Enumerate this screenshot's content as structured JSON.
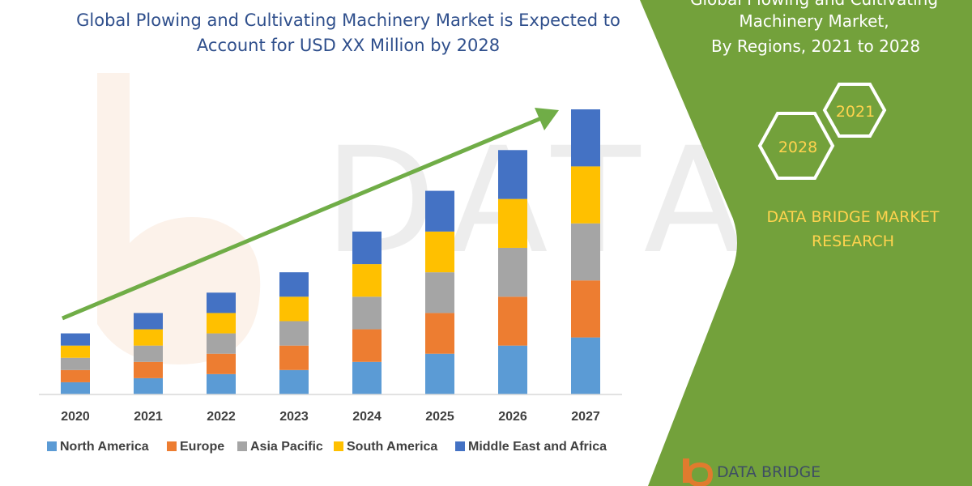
{
  "title_line1": "Global Plowing and Cultivating Machinery Market is Expected to",
  "title_line2": "Account for USD XX Million by 2028",
  "side_panel": {
    "title_line1": "Global Plowing and Cultivating",
    "title_line2": "Machinery Market,",
    "title_line3": "By Regions, 2021 to 2028",
    "hex_a": "2021",
    "hex_b": "2028",
    "brand_line1": "DATA BRIDGE MARKET",
    "brand_line2": "RESEARCH",
    "logo_text": "DATA BRIDGE",
    "color_green": "#73A13B",
    "color_gold": "#FFD34E"
  },
  "chart_data": {
    "type": "bar",
    "stacked": true,
    "title": "Global Plowing and Cultivating Machinery Market is Expected to Account for USD XX Million by 2028",
    "categories": [
      "2020",
      "2021",
      "2022",
      "2023",
      "2024",
      "2025",
      "2026",
      "2027"
    ],
    "series": [
      {
        "name": "North America",
        "color": "#5B9BD5",
        "values": [
          15,
          20,
          25,
          30,
          40,
          50,
          60,
          70
        ]
      },
      {
        "name": "Europe",
        "color": "#ED7D31",
        "values": [
          15,
          20,
          25,
          30,
          40,
          50,
          60,
          70
        ]
      },
      {
        "name": "Asia Pacific",
        "color": "#A5A5A5",
        "values": [
          15,
          20,
          25,
          30,
          40,
          50,
          60,
          70
        ]
      },
      {
        "name": "South America",
        "color": "#FFC000",
        "values": [
          15,
          20,
          25,
          30,
          40,
          50,
          60,
          70
        ]
      },
      {
        "name": "Middle East and Africa",
        "color": "#4472C4",
        "values": [
          15,
          20,
          25,
          30,
          40,
          50,
          60,
          70
        ]
      }
    ],
    "ylim": [
      0,
      350
    ],
    "grid": false,
    "legend": "bottom",
    "trend_arrow_color": "#70AD47"
  }
}
